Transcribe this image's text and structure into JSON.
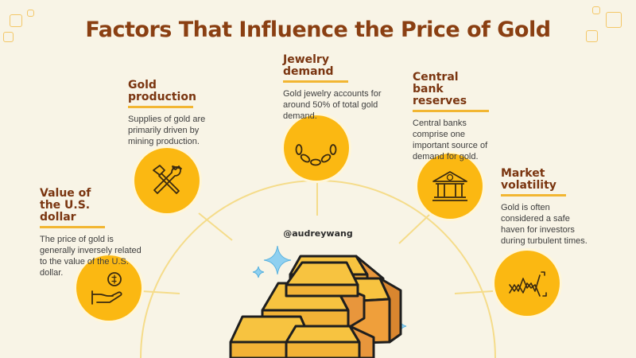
{
  "title": "Factors That Influence the Price of Gold",
  "handle": "@audreywang",
  "factors": [
    {
      "title": "Value of the U.S. dollar",
      "description": "The price of gold is generally inversely related to the value of the U.S. dollar.",
      "icon": "dollar-hand-icon"
    },
    {
      "title": "Gold production",
      "description": "Supplies of gold are primarily driven by mining production.",
      "icon": "hammer-wrench-icon"
    },
    {
      "title": "Jewelry demand",
      "description": "Gold jewelry accounts for around 50% of total gold demand.",
      "icon": "chain-icon"
    },
    {
      "title": "Central bank reserves",
      "description": "Central banks comprise one important source of demand for gold.",
      "icon": "bank-icon"
    },
    {
      "title": "Market volatility",
      "description": "Gold is often considered a safe haven for investors during turbulent times.",
      "icon": "volatility-chart-icon"
    }
  ],
  "colors": {
    "background": "#f8f4e6",
    "title": "#8a3f12",
    "accent": "#f2b632",
    "circle": "#fbb812",
    "gold_light": "#f7c340",
    "gold_dark": "#e8963c"
  },
  "center_icon": "gold-bars-icon"
}
